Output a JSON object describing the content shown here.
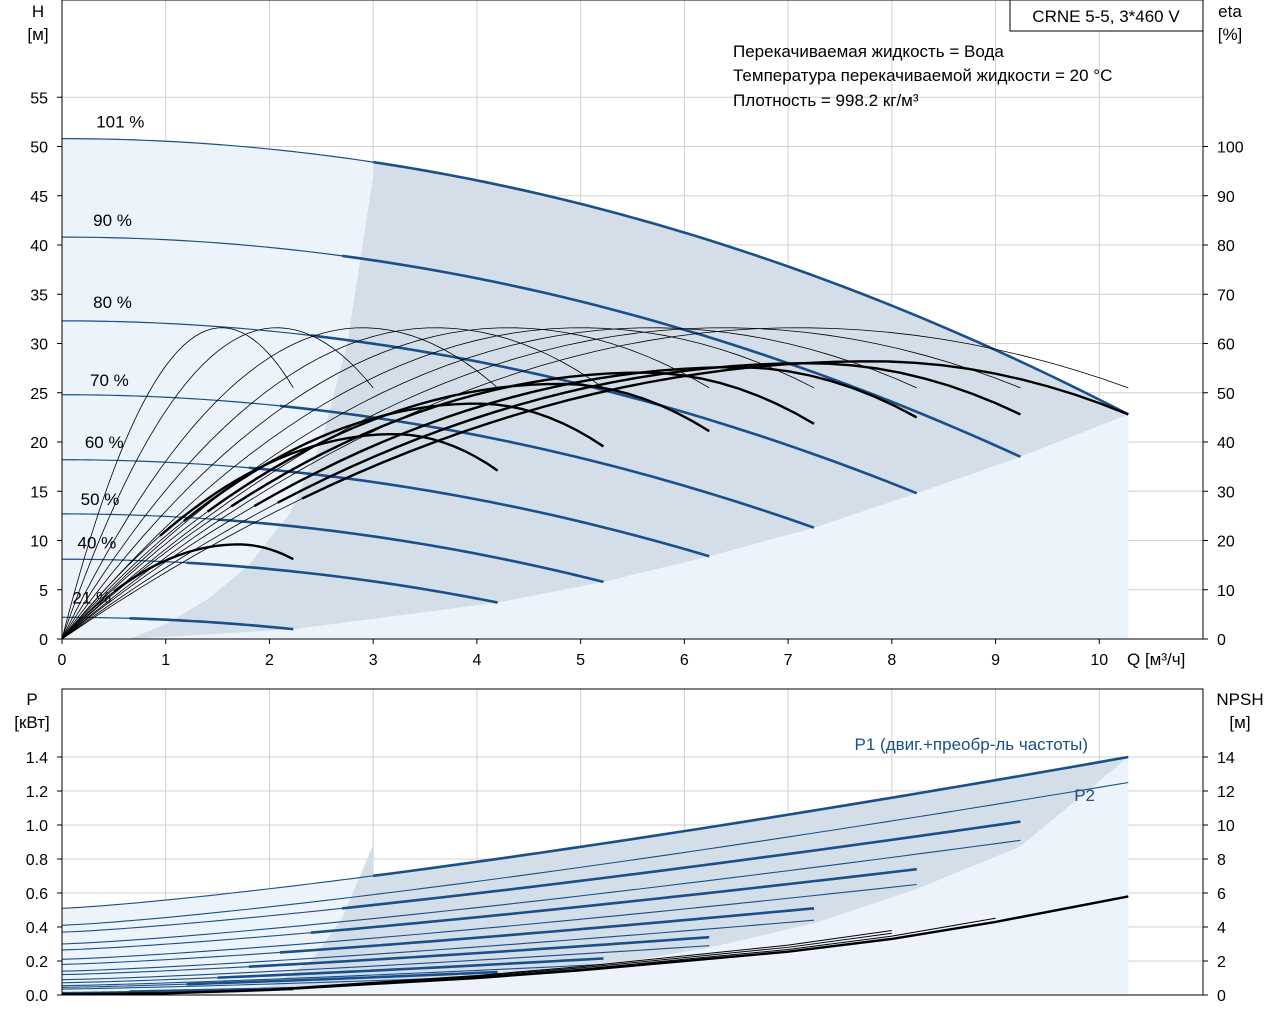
{
  "chart_data": [
    {
      "type": "line",
      "title": "CRNE 5-5, 3*460 V",
      "notes": [
        "Перекачиваемая жидкость = Вода",
        "Температура перекачиваемой жидкости = 20 °C",
        "Плотность = 998.2 кг/м³"
      ],
      "xlabel": "Q [м³/ч]",
      "ylabel": [
        "H",
        "[м]"
      ],
      "y2label": [
        "eta",
        "[%]"
      ],
      "xlim": [
        0,
        11
      ],
      "ylim": [
        0,
        60
      ],
      "y2lim": [
        0,
        120
      ],
      "xticks": [
        "0",
        "1",
        "2",
        "3",
        "4",
        "5",
        "6",
        "7",
        "8",
        "9",
        "10"
      ],
      "yticks": [
        "0",
        "5",
        "10",
        "15",
        "20",
        "25",
        "30",
        "35",
        "40",
        "45",
        "50",
        "55"
      ],
      "y2ticks": [
        "0",
        "10",
        "20",
        "30",
        "40",
        "50",
        "60",
        "70",
        "80",
        "90",
        "100"
      ],
      "grid": true,
      "speed_labels": [
        "101 %",
        "90 %",
        "80 %",
        "70 %",
        "60 %",
        "50 %",
        "40 %",
        "21 %"
      ],
      "head_curves": [
        {
          "name": "101 %",
          "shut_off": 50.8,
          "qmax": 10.28,
          "h_end": 22.8,
          "qeff": 3.0
        },
        {
          "name": "90 %",
          "shut_off": 40.8,
          "qmax": 9.24,
          "h_end": 18.5,
          "qeff": 2.7
        },
        {
          "name": "80 %",
          "shut_off": 32.3,
          "qmax": 8.24,
          "h_end": 14.8,
          "qeff": 2.4
        },
        {
          "name": "70 %",
          "shut_off": 24.8,
          "qmax": 7.25,
          "h_end": 11.3,
          "qeff": 2.1
        },
        {
          "name": "60 %",
          "shut_off": 18.2,
          "qmax": 6.24,
          "h_end": 8.4,
          "qeff": 1.8
        },
        {
          "name": "50 %",
          "shut_off": 12.7,
          "qmax": 5.22,
          "h_end": 5.8,
          "qeff": 1.5
        },
        {
          "name": "40 %",
          "shut_off": 8.1,
          "qmax": 4.2,
          "h_end": 3.7,
          "qeff": 1.2
        },
        {
          "name": "21 %",
          "shut_off": 2.2,
          "qmax": 2.23,
          "h_end": 1.0,
          "qeff": 0.65
        }
      ],
      "efficiency_curves": [
        {
          "qmax": 2.23,
          "peak_q": 1.7,
          "peak_eta": 19.2,
          "eta_end": 16.2
        },
        {
          "qmax": 4.2,
          "peak_q": 3.2,
          "peak_eta": 41.6,
          "eta_end": 34.2
        },
        {
          "qmax": 5.22,
          "peak_q": 4.0,
          "peak_eta": 47.8,
          "eta_end": 39.1
        },
        {
          "qmax": 6.24,
          "peak_q": 4.8,
          "peak_eta": 51.8,
          "eta_end": 42.2
        },
        {
          "qmax": 7.25,
          "peak_q": 5.6,
          "peak_eta": 54.1,
          "eta_end": 43.7
        },
        {
          "qmax": 8.24,
          "peak_q": 6.5,
          "peak_eta": 55.2,
          "eta_end": 45.0
        },
        {
          "qmax": 9.24,
          "peak_q": 7.2,
          "peak_eta": 56.0,
          "eta_end": 45.6
        },
        {
          "qmax": 10.28,
          "peak_q": 7.8,
          "peak_eta": 56.4,
          "eta_end": 45.6
        }
      ]
    },
    {
      "type": "line",
      "xlim": [
        0,
        11
      ],
      "ylabel": [
        "P",
        "[кВт]"
      ],
      "y2label": [
        "NPSH",
        "[м]"
      ],
      "ylim": [
        0,
        1.6
      ],
      "y2lim": [
        0,
        16
      ],
      "yticks": [
        "0.0",
        "0.2",
        "0.4",
        "0.6",
        "0.8",
        "1.0",
        "1.2",
        "1.4"
      ],
      "y2ticks": [
        "0",
        "2",
        "4",
        "6",
        "8",
        "10",
        "12",
        "14"
      ],
      "grid": true,
      "series_labels": {
        "p1": "P1 (двиг.+преобр-ль частоты)",
        "p2": "P2"
      },
      "p1_curves": [
        {
          "qmax": 10.28,
          "p0": 0.51,
          "pend": 1.4,
          "qeff": 3.0
        },
        {
          "qmax": 9.24,
          "p0": 0.37,
          "pend": 1.02,
          "qeff": 2.7
        },
        {
          "qmax": 8.24,
          "p0": 0.265,
          "pend": 0.74,
          "qeff": 2.4
        },
        {
          "qmax": 7.25,
          "p0": 0.18,
          "pend": 0.51,
          "qeff": 2.1
        },
        {
          "qmax": 6.24,
          "p0": 0.12,
          "pend": 0.34,
          "qeff": 1.8
        },
        {
          "qmax": 5.22,
          "p0": 0.072,
          "pend": 0.215,
          "qeff": 1.5
        },
        {
          "qmax": 4.2,
          "p0": 0.045,
          "pend": 0.135,
          "qeff": 1.2
        },
        {
          "qmax": 2.23,
          "p0": 0.015,
          "pend": 0.04,
          "qeff": 0.65
        }
      ],
      "p2_curves": [
        {
          "qmax": 10.28,
          "p0": 0.41,
          "pend": 1.25,
          "qeff": 3.0
        },
        {
          "qmax": 9.24,
          "p0": 0.3,
          "pend": 0.91,
          "qeff": 2.7
        },
        {
          "qmax": 8.24,
          "p0": 0.21,
          "pend": 0.65,
          "qeff": 2.4
        },
        {
          "qmax": 7.25,
          "p0": 0.14,
          "pend": 0.44,
          "qeff": 2.1
        },
        {
          "qmax": 6.24,
          "p0": 0.09,
          "pend": 0.29,
          "qeff": 1.8
        },
        {
          "qmax": 5.22,
          "p0": 0.055,
          "pend": 0.18,
          "qeff": 1.5
        },
        {
          "qmax": 4.2,
          "p0": 0.035,
          "pend": 0.11,
          "qeff": 1.2
        },
        {
          "qmax": 2.23,
          "p0": 0.01,
          "pend": 0.03,
          "qeff": 0.65
        }
      ],
      "npsh_curve": {
        "q": [
          0,
          1,
          2,
          3,
          4,
          5,
          6,
          7,
          8,
          9,
          10.28
        ],
        "npsh": [
          0.05,
          0.1,
          0.3,
          0.65,
          1.0,
          1.45,
          2.0,
          2.55,
          3.3,
          4.3,
          5.8
        ]
      }
    }
  ]
}
